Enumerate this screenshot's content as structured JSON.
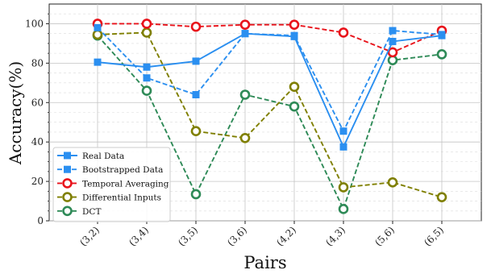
{
  "chart_data": {
    "type": "line",
    "title": "",
    "xlabel": "Pairs",
    "ylabel": "Accuracy(%)",
    "categories": [
      "(3,2)",
      "(3,4)",
      "(3,5)",
      "(3,6)",
      "(4,2)",
      "(4,3)",
      "(5,6)",
      "(6,5)"
    ],
    "ylim": [
      0,
      110
    ],
    "yticks": [
      0,
      20,
      40,
      60,
      80,
      100
    ],
    "grid": true,
    "legend_position": "lower-left",
    "series": [
      {
        "name": "Real Data",
        "values": [
          80.5,
          78,
          81,
          95,
          93.5,
          37.5,
          91,
          94
        ],
        "color": "#2b8ff0",
        "style": "solid",
        "marker": "square"
      },
      {
        "name": "Bootstrapped Data",
        "values": [
          98,
          72.5,
          64,
          95,
          94,
          45.5,
          96.5,
          94.5
        ],
        "color": "#2b8ff0",
        "style": "dashed",
        "marker": "square"
      },
      {
        "name": "Temporal Averaging",
        "values": [
          100,
          100,
          98.5,
          99.5,
          99.5,
          95.5,
          85.5,
          96.5
        ],
        "color": "#e8131b",
        "style": "dashed",
        "marker": "circle"
      },
      {
        "name": "Differential Inputs",
        "values": [
          94.5,
          95.5,
          45.5,
          42,
          68,
          17,
          19.5,
          12
        ],
        "color": "#7f7f00",
        "style": "dashed",
        "marker": "circle"
      },
      {
        "name": "DCT",
        "values": [
          94,
          66,
          13.5,
          64,
          58,
          6,
          81.5,
          84.5
        ],
        "color": "#2e8a57",
        "style": "dashed",
        "marker": "circle"
      }
    ]
  }
}
